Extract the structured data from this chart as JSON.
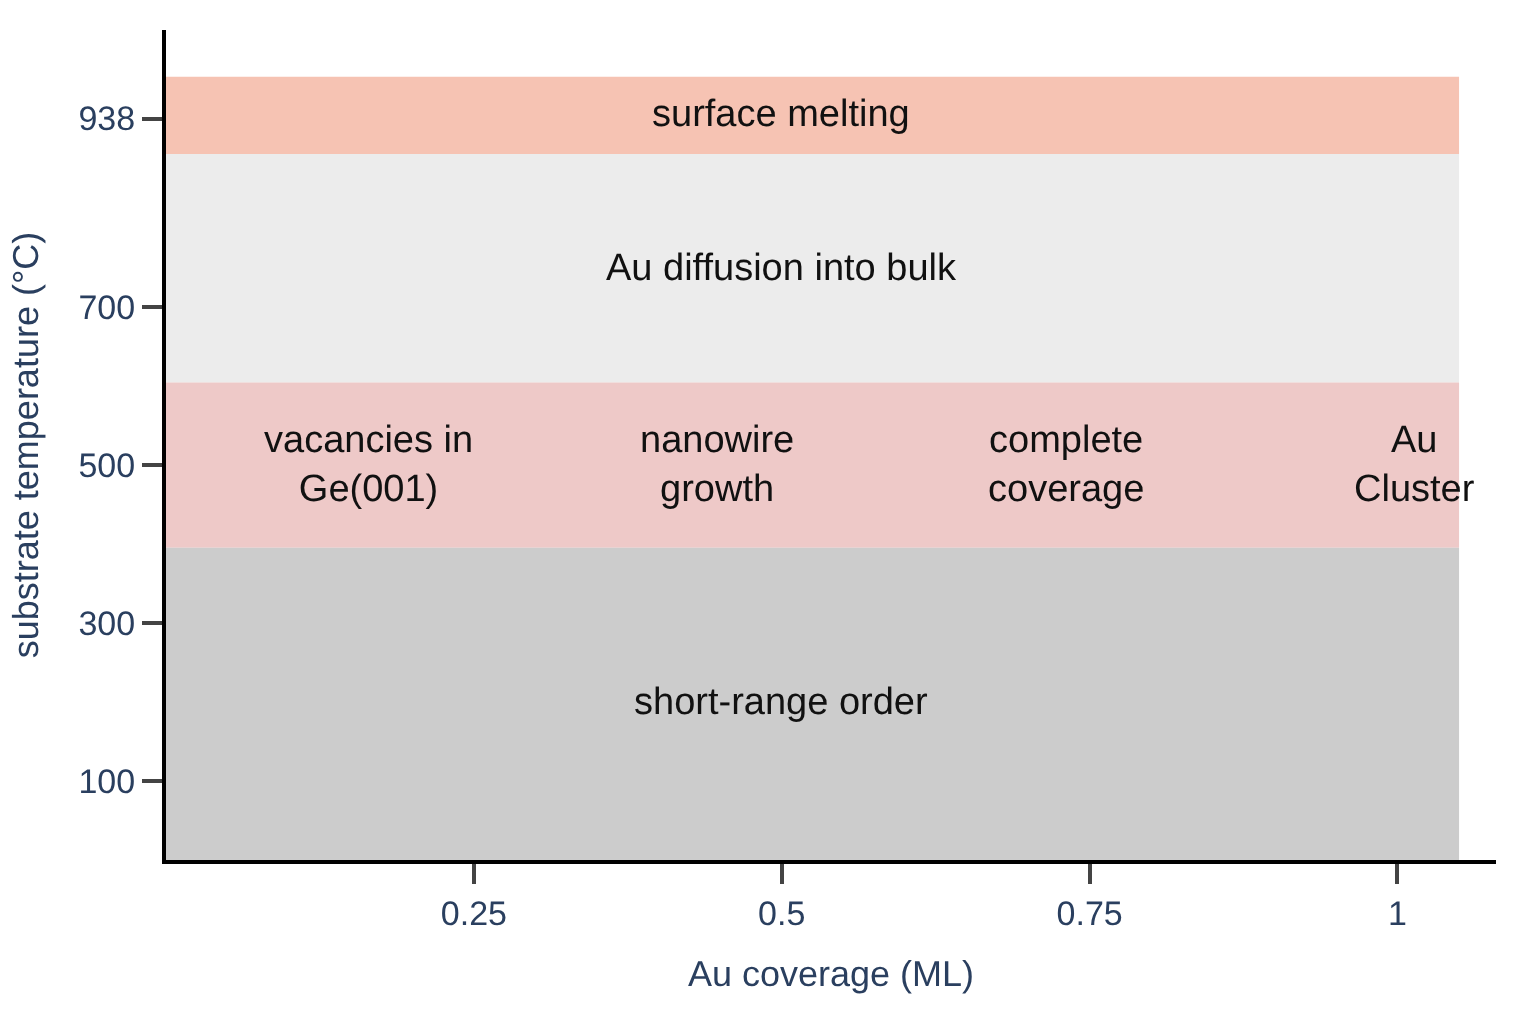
{
  "chart_data": {
    "type": "scatter",
    "xlabel": "Au coverage (ML)",
    "ylabel": "substrate temperature (°C)",
    "xlim": [
      0,
      1.08
    ],
    "ylim": [
      0,
      1050
    ],
    "xticks": [
      {
        "value": 0.25,
        "label": "0.25"
      },
      {
        "value": 0.5,
        "label": "0.5"
      },
      {
        "value": 0.75,
        "label": "0.75"
      },
      {
        "value": 1,
        "label": "1"
      }
    ],
    "yticks": [
      100,
      300,
      500,
      700,
      938
    ],
    "bands": [
      {
        "axis": "y",
        "from": 893,
        "to": 991,
        "color": "#f6c3b3",
        "label": "surface melting"
      },
      {
        "axis": "y",
        "from": 604,
        "to": 893,
        "color": "#ececec",
        "label": "Au diffusion into bulk"
      },
      {
        "axis": "y",
        "from": 395,
        "to": 604,
        "color": "#eec9c8"
      },
      {
        "axis": "y",
        "from": 0,
        "to": 395,
        "color": "#cccccc",
        "label": "short-range order"
      }
    ],
    "annotations": [
      "vacancies in\nGe(001)",
      "nanowire\ngrowth",
      "complete\ncoverage",
      "Au\nCluster"
    ]
  }
}
